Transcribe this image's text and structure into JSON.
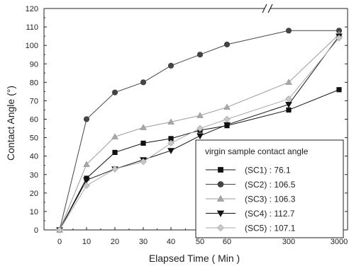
{
  "chart_data": {
    "type": "line",
    "xlabel": "Elapsed  Time ( Min )",
    "ylabel": "Contact  Angle (°)",
    "x_tick_labels": [
      "0",
      "10",
      "20",
      "30",
      "40",
      "50",
      "60",
      "300",
      "3000"
    ],
    "x": [
      0,
      10,
      20,
      30,
      40,
      50,
      60,
      300,
      3000
    ],
    "x_axis_break": "between 60 and 300",
    "ylim": [
      0,
      120
    ],
    "y_ticks": [
      0,
      10,
      20,
      30,
      40,
      50,
      60,
      70,
      80,
      90,
      100,
      110,
      120
    ],
    "grid": false,
    "legend": {
      "title": "virgin sample contact angle",
      "placement": "bottom-right"
    },
    "series": [
      {
        "name": "(SC1) : 76.1",
        "marker": "square",
        "color": "#111111",
        "fill": "#111111",
        "values": [
          0,
          28,
          42,
          47,
          49.5,
          54,
          56.5,
          65,
          76
        ]
      },
      {
        "name": "(SC2) : 106.5",
        "marker": "circle",
        "color": "#444444",
        "fill": "#444444",
        "values": [
          0,
          60,
          74.5,
          80,
          89,
          95,
          100.5,
          108,
          108
        ]
      },
      {
        "name": "(SC3) : 106.3",
        "marker": "triangle-up",
        "color": "#9a9a9a",
        "fill": "#a8a8a8",
        "values": [
          0,
          35.5,
          50.5,
          55.5,
          58.5,
          62,
          66.5,
          80,
          106
        ]
      },
      {
        "name": "(SC4) : 112.7",
        "marker": "triangle-down",
        "color": "#111111",
        "fill": "#111111",
        "values": [
          0,
          27,
          33,
          38,
          43,
          51,
          57,
          68,
          105
        ]
      },
      {
        "name": "(SC5) : 107.1",
        "marker": "diamond",
        "color": "#aaaaaa",
        "fill": "#c8c8c8",
        "values": [
          0,
          24,
          33,
          37,
          47,
          55,
          60,
          71,
          104
        ]
      }
    ]
  }
}
